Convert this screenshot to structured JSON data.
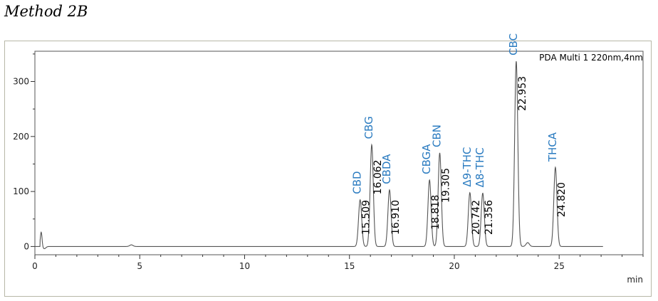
{
  "caption": "Method 2B",
  "chart_data": {
    "type": "line",
    "channel_label": "PDA Multi 1 220nm,4nm",
    "x_unit": "min",
    "xlim": [
      0,
      29
    ],
    "ylim": [
      -15,
      355
    ],
    "x_ticks": [
      0,
      5,
      10,
      15,
      20,
      25
    ],
    "y_ticks": [
      0,
      100,
      200,
      300
    ],
    "baseline": 0,
    "initial_spike": {
      "time": 0.3,
      "height": 26
    },
    "minor_bumps": [
      {
        "time": 4.6,
        "height": 3
      },
      {
        "time": 23.5,
        "height": 7
      }
    ],
    "peaks": [
      {
        "name": "CBD",
        "time": "15.509",
        "rt": 15.509,
        "height": 85
      },
      {
        "name": "CBG",
        "time": "16.062",
        "rt": 16.062,
        "height": 185
      },
      {
        "name": "CBDA",
        "time": "16.910",
        "rt": 16.91,
        "height": 103
      },
      {
        "name": "CBGA",
        "time": "18.818",
        "rt": 18.818,
        "height": 121
      },
      {
        "name": "CBN",
        "time": "19.305",
        "rt": 19.305,
        "height": 170
      },
      {
        "name": "Δ9-THC",
        "time": "20.742",
        "rt": 20.742,
        "height": 98
      },
      {
        "name": "Δ8-THC",
        "time": "21.356",
        "rt": 21.356,
        "height": 97
      },
      {
        "name": "CBC",
        "time": "22.953",
        "rt": 22.953,
        "height": 337
      },
      {
        "name": "THCA",
        "time": "24.820",
        "rt": 24.82,
        "height": 144
      }
    ],
    "line_color": "#555555",
    "label_color": "#2a7bc0"
  }
}
